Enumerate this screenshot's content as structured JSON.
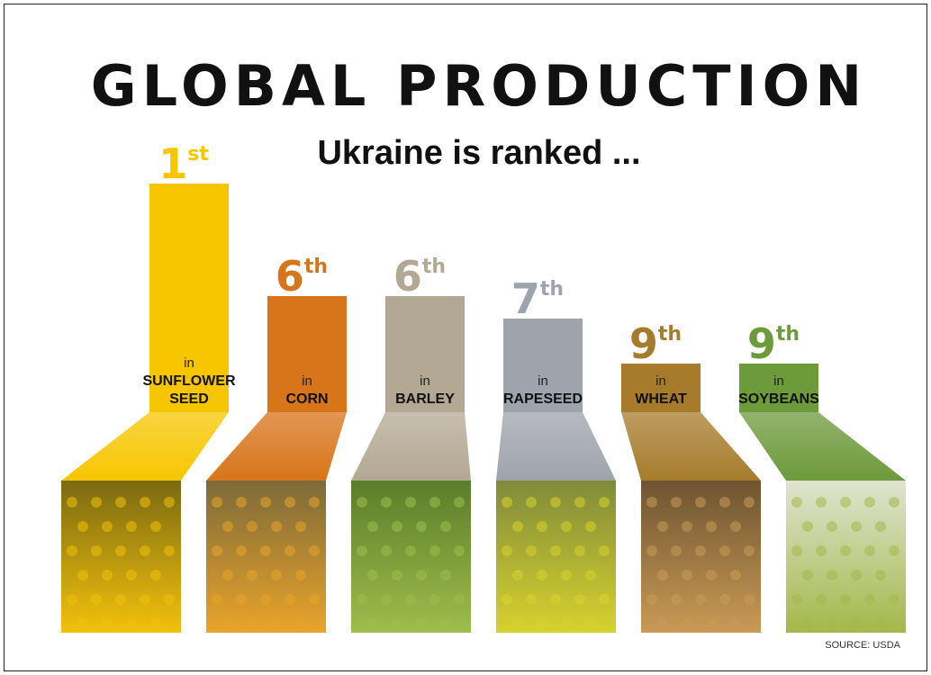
{
  "chart_data": {
    "type": "bar",
    "title": "GLOBAL PRODUCTION",
    "subtitle": "Ukraine is ranked ...",
    "source": "SOURCE: USDA",
    "categories": [
      "SUNFLOWER SEED",
      "CORN",
      "BARLEY",
      "RAPESEED",
      "WHEAT",
      "SOYBEANS"
    ],
    "values": [
      1,
      6,
      6,
      7,
      9,
      9
    ],
    "rank_suffixes": [
      "st",
      "th",
      "th",
      "th",
      "th",
      "th"
    ],
    "prefix": "in",
    "label_lines": [
      [
        "SUNFLOWER",
        "SEED"
      ],
      [
        "CORN"
      ],
      [
        "BARLEY"
      ],
      [
        "RAPESEED"
      ],
      [
        "WHEAT"
      ],
      [
        "SOYBEANS"
      ]
    ],
    "colors": [
      "#f7c600",
      "#d8741a",
      "#b3a894",
      "#9fa3ab",
      "#a67c2c",
      "#6d9a3b"
    ],
    "photo_colors": {
      "SUNFLOWER SEED": [
        "#f3c10c",
        "#7a6a12"
      ],
      "CORN": [
        "#e8a42a",
        "#7d6a3a"
      ],
      "BARLEY": [
        "#9fbd4c",
        "#5b7d2a"
      ],
      "RAPESEED": [
        "#d8d22e",
        "#7f8b3a"
      ],
      "WHEAT": [
        "#c99a55",
        "#6e5431"
      ],
      "SOYBEANS": [
        "#a4b84a",
        "#dfe4d0"
      ]
    }
  }
}
